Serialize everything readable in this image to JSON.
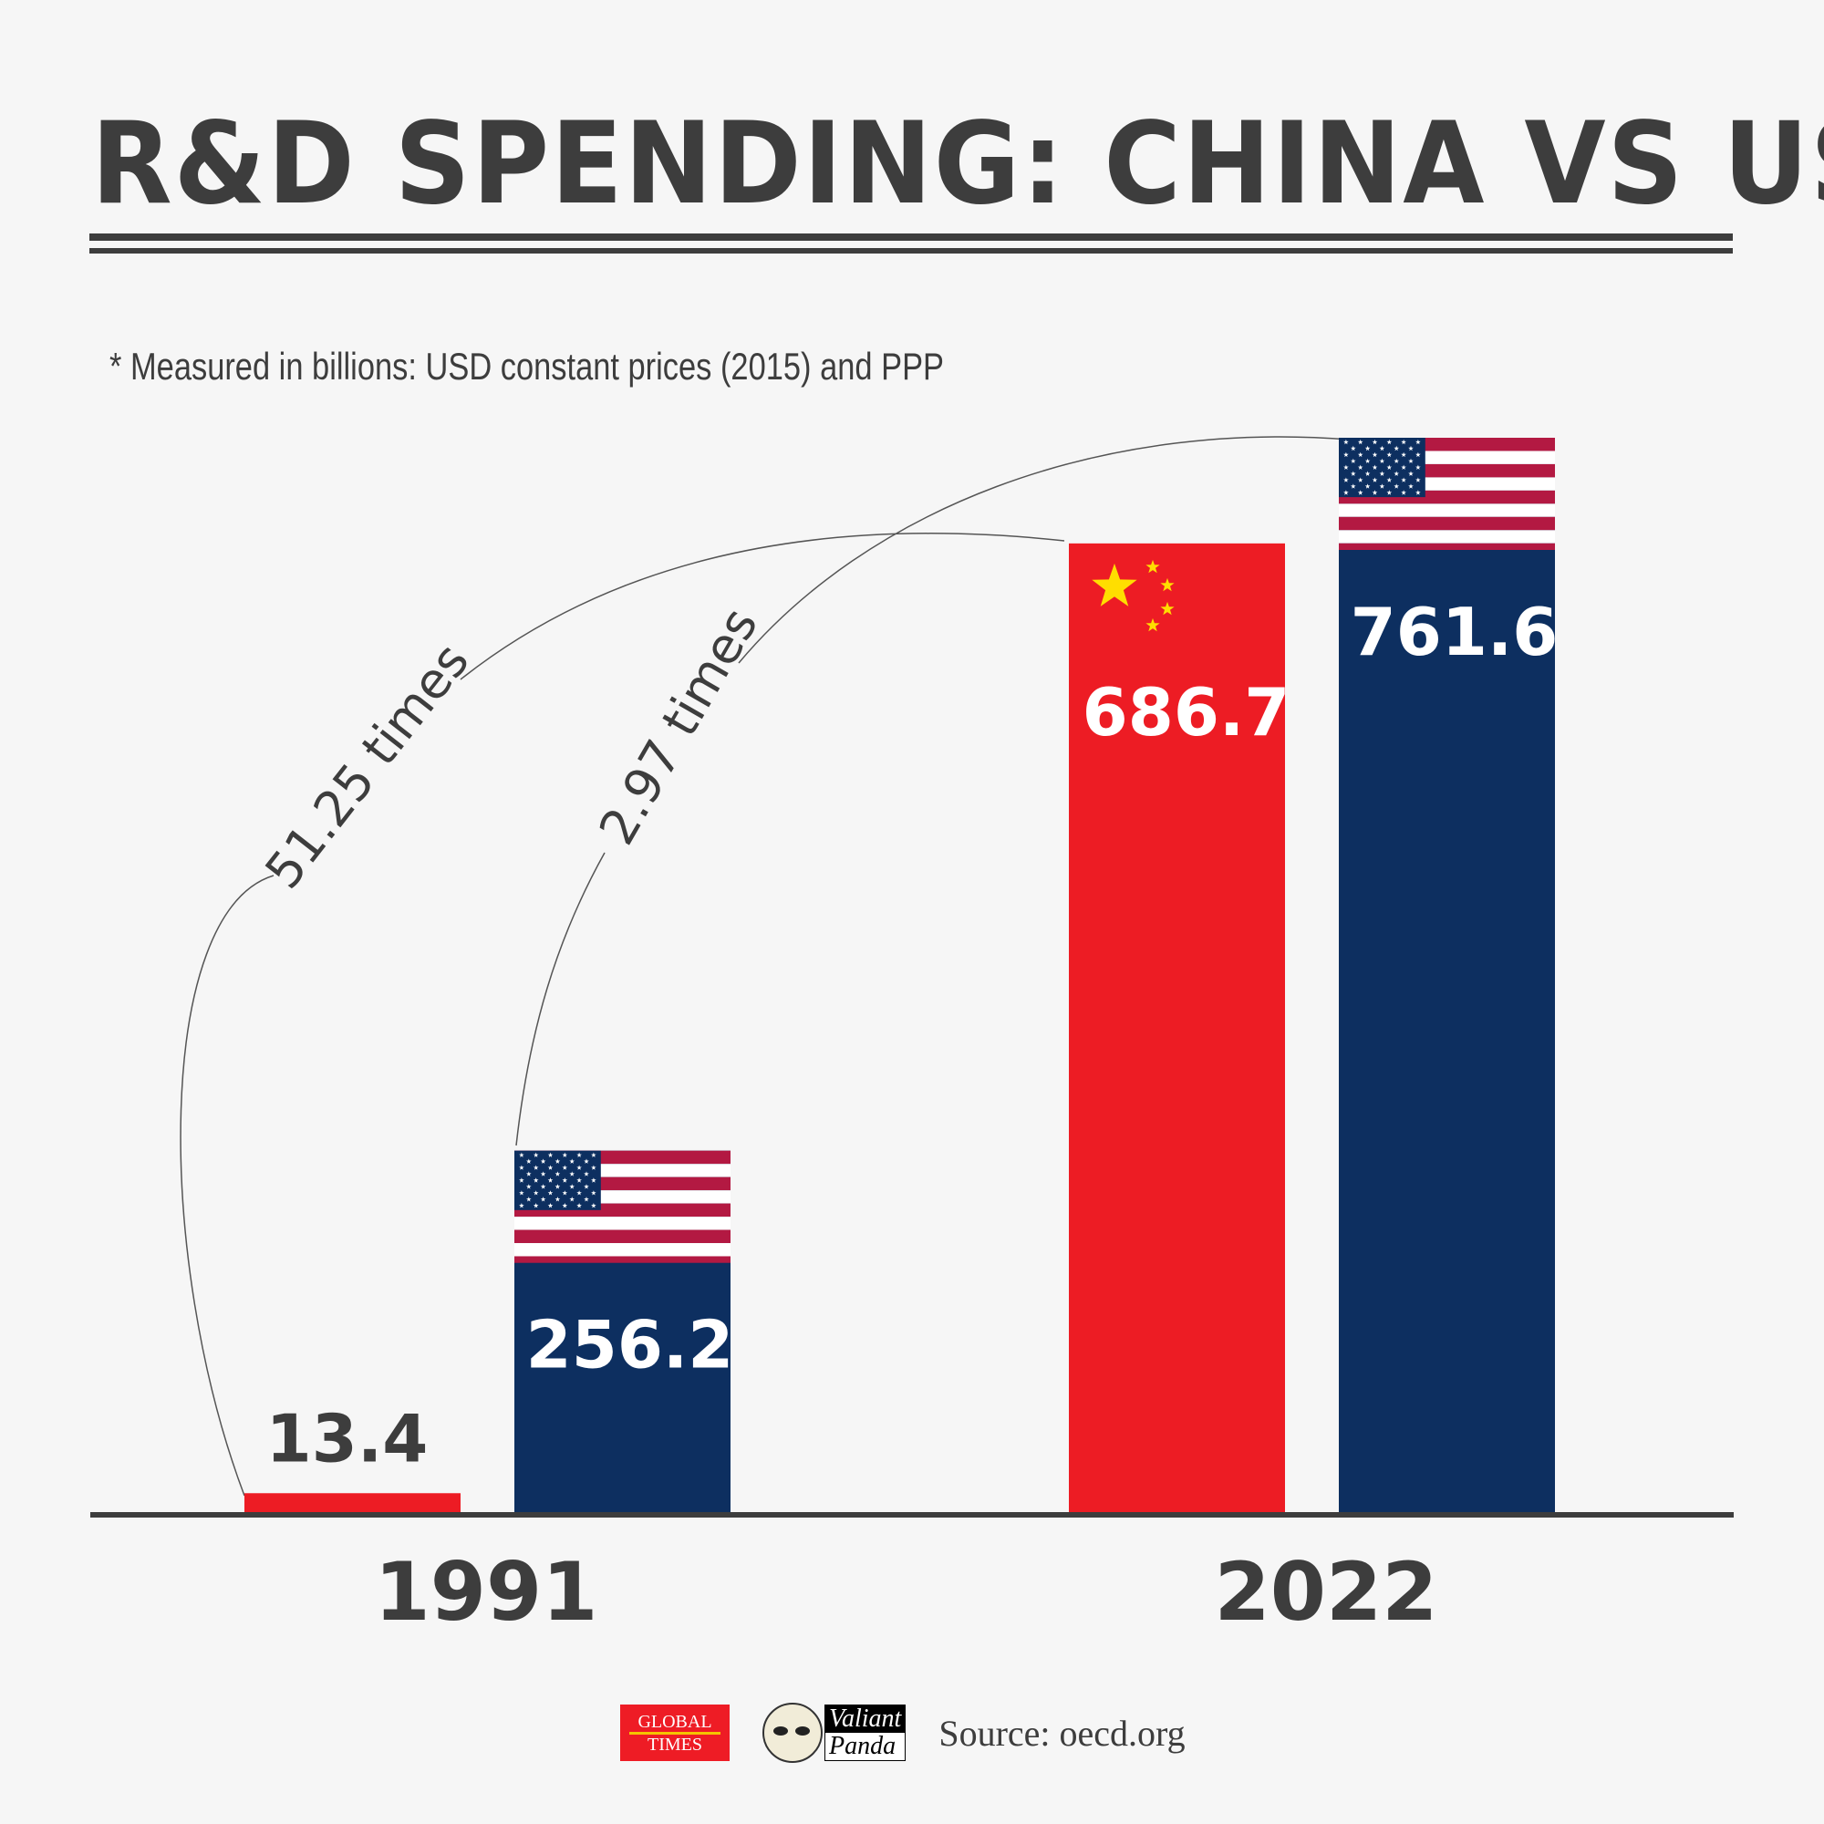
{
  "header": {
    "title": "R&D SPENDING: CHINA VS US",
    "subtitle": "* Measured in billions: USD constant prices (2015) and PPP"
  },
  "colors": {
    "china": "#ed1c24",
    "us": "#0d2f60",
    "us_flag_red": "#b31942",
    "text": "#3d3d3d",
    "background": "#f6f6f6"
  },
  "chart_data": {
    "type": "bar",
    "title": "R&D SPENDING: CHINA VS US",
    "subtitle": "* Measured in billions: USD constant prices (2015) and PPP",
    "xlabel": "",
    "ylabel": "",
    "ylim": [
      0,
      800
    ],
    "grid": false,
    "categories": [
      "1991",
      "2022"
    ],
    "series": [
      {
        "name": "China",
        "values": [
          13.4,
          686.7
        ],
        "labels": [
          "13.4",
          "686.7"
        ],
        "flag": "china-flag"
      },
      {
        "name": "US",
        "values": [
          256.2,
          761.6
        ],
        "labels": [
          "256.2",
          "761.6"
        ],
        "flag": "us-flag"
      }
    ],
    "annotations": [
      {
        "text": "51.25 times",
        "from": "China 1991",
        "to": "China 2022"
      },
      {
        "text": "2.97 times",
        "from": "US 1991",
        "to": "US 2022"
      }
    ]
  },
  "footer": {
    "logo1_line1": "GLOBAL",
    "logo1_line2": "TIMES",
    "logo2_line1": "Valiant",
    "logo2_line2": "Panda",
    "source": "Source: oecd.org"
  }
}
